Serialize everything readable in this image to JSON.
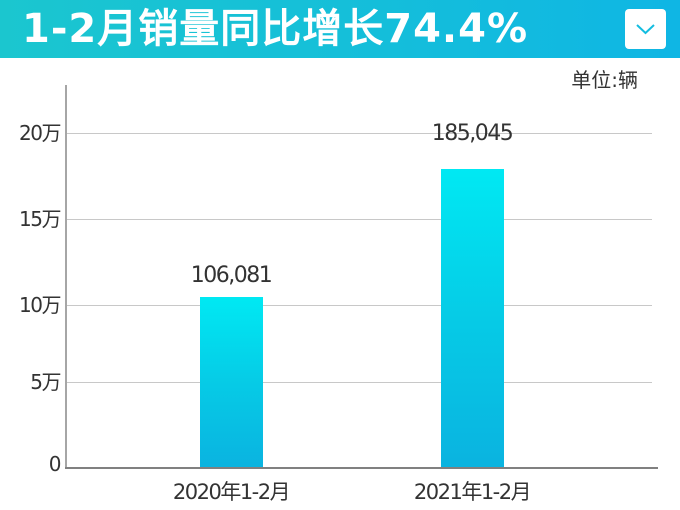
{
  "header": {
    "title": "1-2月销量同比增长74.4%",
    "dropdown_icon": "chevron-down-icon"
  },
  "unit_label": "单位:辆",
  "colors": {
    "header_start": "#1bc6cf",
    "header_end": "#0fb6e4",
    "bar_top": "#00e9f3",
    "bar_bottom": "#0ab3e0"
  },
  "chart_data": {
    "type": "bar",
    "title": "1-2月销量同比增长74.4%",
    "unit": "单位:辆",
    "categories": [
      "2020年1-2月",
      "2021年1-2月"
    ],
    "values": [
      106081,
      185045
    ],
    "value_labels": [
      "106,081",
      "185,045"
    ],
    "yticks": [
      0,
      50000,
      100000,
      150000,
      200000
    ],
    "ytick_labels": [
      "0",
      "5万",
      "10万",
      "15万",
      "20万"
    ],
    "ylim": [
      0,
      200000
    ],
    "xlabel": "",
    "ylabel": "",
    "grid": true,
    "legend": false
  }
}
